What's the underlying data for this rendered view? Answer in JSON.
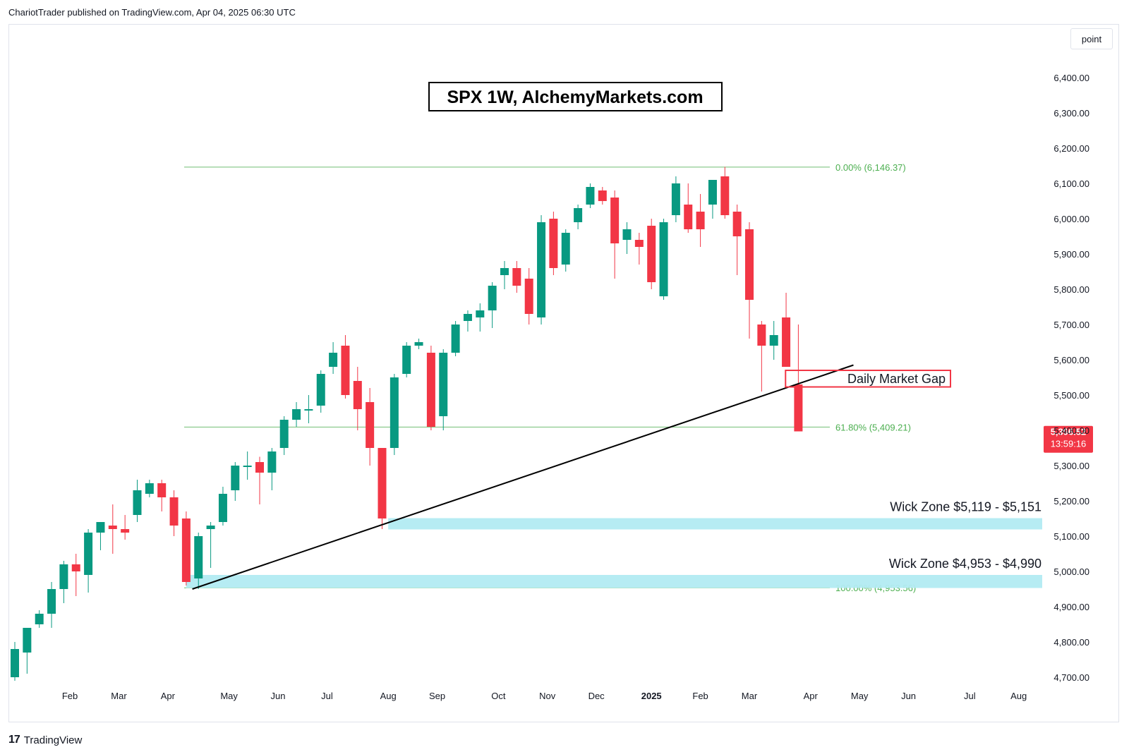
{
  "header": {
    "published_by": "ChariotTrader published on TradingView.com, Apr 04, 2025 06:30 UTC"
  },
  "price_unit": "point",
  "brand": {
    "mark": "17",
    "name": "TradingView"
  },
  "colors": {
    "up": "#089981",
    "down": "#f23645",
    "fib": "#4caf50",
    "zone": "#b2ebf2",
    "trendline": "#000000"
  },
  "chart_data": {
    "type": "candlestick",
    "title": "SPX 1W, AlchemyMarkets.com",
    "ylim": [
      4650,
      6500
    ],
    "y_ticks": [
      {
        "value": 4700,
        "label": "4,700.00"
      },
      {
        "value": 4800,
        "label": "4,800.00"
      },
      {
        "value": 4900,
        "label": "4,900.00"
      },
      {
        "value": 5000,
        "label": "5,000.00"
      },
      {
        "value": 5100,
        "label": "5,100.00"
      },
      {
        "value": 5200,
        "label": "5,200.00"
      },
      {
        "value": 5300,
        "label": "5,300.00"
      },
      {
        "value": 5400,
        "label": "5,400.00"
      },
      {
        "value": 5500,
        "label": "5,500.00"
      },
      {
        "value": 5600,
        "label": "5,600.00"
      },
      {
        "value": 5700,
        "label": "5,700.00"
      },
      {
        "value": 5800,
        "label": "5,800.00"
      },
      {
        "value": 5900,
        "label": "5,900.00"
      },
      {
        "value": 6000,
        "label": "6,000.00"
      },
      {
        "value": 6100,
        "label": "6,100.00"
      },
      {
        "value": 6200,
        "label": "6,200.00"
      },
      {
        "value": 6300,
        "label": "6,300.00"
      },
      {
        "value": 6400,
        "label": "6,400.00"
      }
    ],
    "x_ticks": [
      {
        "week": 4.5,
        "label": "Feb"
      },
      {
        "week": 8.5,
        "label": "Mar"
      },
      {
        "week": 12.5,
        "label": "Apr"
      },
      {
        "week": 17.5,
        "label": "May"
      },
      {
        "week": 21.5,
        "label": "Jun"
      },
      {
        "week": 25.5,
        "label": "Jul"
      },
      {
        "week": 30.5,
        "label": "Aug"
      },
      {
        "week": 34.5,
        "label": "Sep"
      },
      {
        "week": 39.5,
        "label": "Oct"
      },
      {
        "week": 43.5,
        "label": "Nov"
      },
      {
        "week": 47.5,
        "label": "Dec"
      },
      {
        "week": 52.0,
        "label": "2025",
        "bold": true
      },
      {
        "week": 56.0,
        "label": "Feb"
      },
      {
        "week": 60.0,
        "label": "Mar"
      },
      {
        "week": 65.0,
        "label": "Apr"
      },
      {
        "week": 69.0,
        "label": "May"
      },
      {
        "week": 73.0,
        "label": "Jun"
      },
      {
        "week": 78.0,
        "label": "Jul"
      },
      {
        "week": 82.0,
        "label": "Aug"
      }
    ],
    "candles": [
      {
        "o": 4700,
        "h": 4800,
        "l": 4690,
        "c": 4780
      },
      {
        "o": 4770,
        "h": 4840,
        "l": 4710,
        "c": 4840
      },
      {
        "o": 4850,
        "h": 4890,
        "l": 4840,
        "c": 4880
      },
      {
        "o": 4880,
        "h": 4970,
        "l": 4840,
        "c": 4950
      },
      {
        "o": 4950,
        "h": 5030,
        "l": 4910,
        "c": 5020
      },
      {
        "o": 5020,
        "h": 5050,
        "l": 4930,
        "c": 5000
      },
      {
        "o": 4990,
        "h": 5120,
        "l": 4940,
        "c": 5110
      },
      {
        "o": 5110,
        "h": 5140,
        "l": 5060,
        "c": 5140
      },
      {
        "o": 5130,
        "h": 5190,
        "l": 5050,
        "c": 5120
      },
      {
        "o": 5120,
        "h": 5160,
        "l": 5090,
        "c": 5110
      },
      {
        "o": 5160,
        "h": 5260,
        "l": 5140,
        "c": 5230
      },
      {
        "o": 5220,
        "h": 5260,
        "l": 5210,
        "c": 5250
      },
      {
        "o": 5250,
        "h": 5260,
        "l": 5170,
        "c": 5210
      },
      {
        "o": 5210,
        "h": 5230,
        "l": 5100,
        "c": 5130
      },
      {
        "o": 5150,
        "h": 5170,
        "l": 4960,
        "c": 4970
      },
      {
        "o": 4980,
        "h": 5110,
        "l": 4950,
        "c": 5100
      },
      {
        "o": 5120,
        "h": 5140,
        "l": 5010,
        "c": 5130
      },
      {
        "o": 5140,
        "h": 5240,
        "l": 5130,
        "c": 5220
      },
      {
        "o": 5230,
        "h": 5310,
        "l": 5200,
        "c": 5300
      },
      {
        "o": 5300,
        "h": 5340,
        "l": 5260,
        "c": 5300
      },
      {
        "o": 5310,
        "h": 5325,
        "l": 5190,
        "c": 5280
      },
      {
        "o": 5280,
        "h": 5350,
        "l": 5230,
        "c": 5340
      },
      {
        "o": 5350,
        "h": 5440,
        "l": 5330,
        "c": 5430
      },
      {
        "o": 5430,
        "h": 5480,
        "l": 5410,
        "c": 5460
      },
      {
        "o": 5460,
        "h": 5500,
        "l": 5420,
        "c": 5460
      },
      {
        "o": 5470,
        "h": 5570,
        "l": 5450,
        "c": 5560
      },
      {
        "o": 5580,
        "h": 5650,
        "l": 5560,
        "c": 5620
      },
      {
        "o": 5640,
        "h": 5670,
        "l": 5490,
        "c": 5500
      },
      {
        "o": 5540,
        "h": 5580,
        "l": 5400,
        "c": 5460
      },
      {
        "o": 5480,
        "h": 5520,
        "l": 5300,
        "c": 5350
      },
      {
        "o": 5350,
        "h": 5350,
        "l": 5120,
        "c": 5150
      },
      {
        "o": 5350,
        "h": 5560,
        "l": 5330,
        "c": 5550
      },
      {
        "o": 5560,
        "h": 5650,
        "l": 5550,
        "c": 5640
      },
      {
        "o": 5640,
        "h": 5660,
        "l": 5630,
        "c": 5650
      },
      {
        "o": 5620,
        "h": 5640,
        "l": 5400,
        "c": 5410
      },
      {
        "o": 5440,
        "h": 5630,
        "l": 5400,
        "c": 5620
      },
      {
        "o": 5620,
        "h": 5710,
        "l": 5610,
        "c": 5700
      },
      {
        "o": 5710,
        "h": 5740,
        "l": 5680,
        "c": 5730
      },
      {
        "o": 5720,
        "h": 5760,
        "l": 5680,
        "c": 5740
      },
      {
        "o": 5740,
        "h": 5820,
        "l": 5690,
        "c": 5810
      },
      {
        "o": 5840,
        "h": 5880,
        "l": 5800,
        "c": 5860
      },
      {
        "o": 5860,
        "h": 5880,
        "l": 5790,
        "c": 5810
      },
      {
        "o": 5830,
        "h": 5860,
        "l": 5700,
        "c": 5730
      },
      {
        "o": 5720,
        "h": 6010,
        "l": 5700,
        "c": 5990
      },
      {
        "o": 6000,
        "h": 6020,
        "l": 5840,
        "c": 5860
      },
      {
        "o": 5870,
        "h": 5970,
        "l": 5850,
        "c": 5960
      },
      {
        "o": 5990,
        "h": 6040,
        "l": 5970,
        "c": 6030
      },
      {
        "o": 6040,
        "h": 6100,
        "l": 6030,
        "c": 6090
      },
      {
        "o": 6080,
        "h": 6090,
        "l": 6040,
        "c": 6050
      },
      {
        "o": 6060,
        "h": 6080,
        "l": 5830,
        "c": 5930
      },
      {
        "o": 5940,
        "h": 5990,
        "l": 5900,
        "c": 5970
      },
      {
        "o": 5940,
        "h": 5960,
        "l": 5870,
        "c": 5920
      },
      {
        "o": 5980,
        "h": 6000,
        "l": 5800,
        "c": 5820
      },
      {
        "o": 5780,
        "h": 6000,
        "l": 5770,
        "c": 5990
      },
      {
        "o": 6010,
        "h": 6120,
        "l": 5990,
        "c": 6100
      },
      {
        "o": 6040,
        "h": 6100,
        "l": 5960,
        "c": 5970
      },
      {
        "o": 6020,
        "h": 6070,
        "l": 5920,
        "c": 5970
      },
      {
        "o": 6040,
        "h": 6110,
        "l": 6000,
        "c": 6110
      },
      {
        "o": 6120,
        "h": 6147,
        "l": 6000,
        "c": 6010
      },
      {
        "o": 6020,
        "h": 6040,
        "l": 5840,
        "c": 5950
      },
      {
        "o": 5970,
        "h": 5990,
        "l": 5660,
        "c": 5770
      },
      {
        "o": 5700,
        "h": 5710,
        "l": 5510,
        "c": 5640
      },
      {
        "o": 5640,
        "h": 5710,
        "l": 5600,
        "c": 5670
      },
      {
        "o": 5720,
        "h": 5790,
        "l": 5580,
        "c": 5580
      },
      {
        "o": 5530,
        "h": 5700,
        "l": 5400,
        "c": 5397
      }
    ],
    "fib_levels": [
      {
        "value": 6146.37,
        "label": "0.00% (6,146.37)"
      },
      {
        "value": 5409.21,
        "label": "61.80% (5,409.21)"
      },
      {
        "value": 4953.56,
        "label": "100.00% (4,953.56)"
      }
    ],
    "trendline": {
      "from": {
        "week": 14.5,
        "price": 4950
      },
      "to": {
        "week": 68.5,
        "price": 5585
      }
    },
    "zones": [
      {
        "label": "Wick Zone $5,119 - $5,151",
        "from_week": 30.5,
        "low": 5119,
        "high": 5151
      },
      {
        "label": "Wick Zone $4,953 - $4,990",
        "from_week": 14.0,
        "low": 4953,
        "high": 4990
      }
    ],
    "gap_annotation": {
      "label": "Daily Market Gap",
      "week": 63.3,
      "low": 5523,
      "high": 5570
    },
    "last_price": {
      "value": 5396.52,
      "label": "5,396.52",
      "countdown": "13:59:16"
    }
  }
}
